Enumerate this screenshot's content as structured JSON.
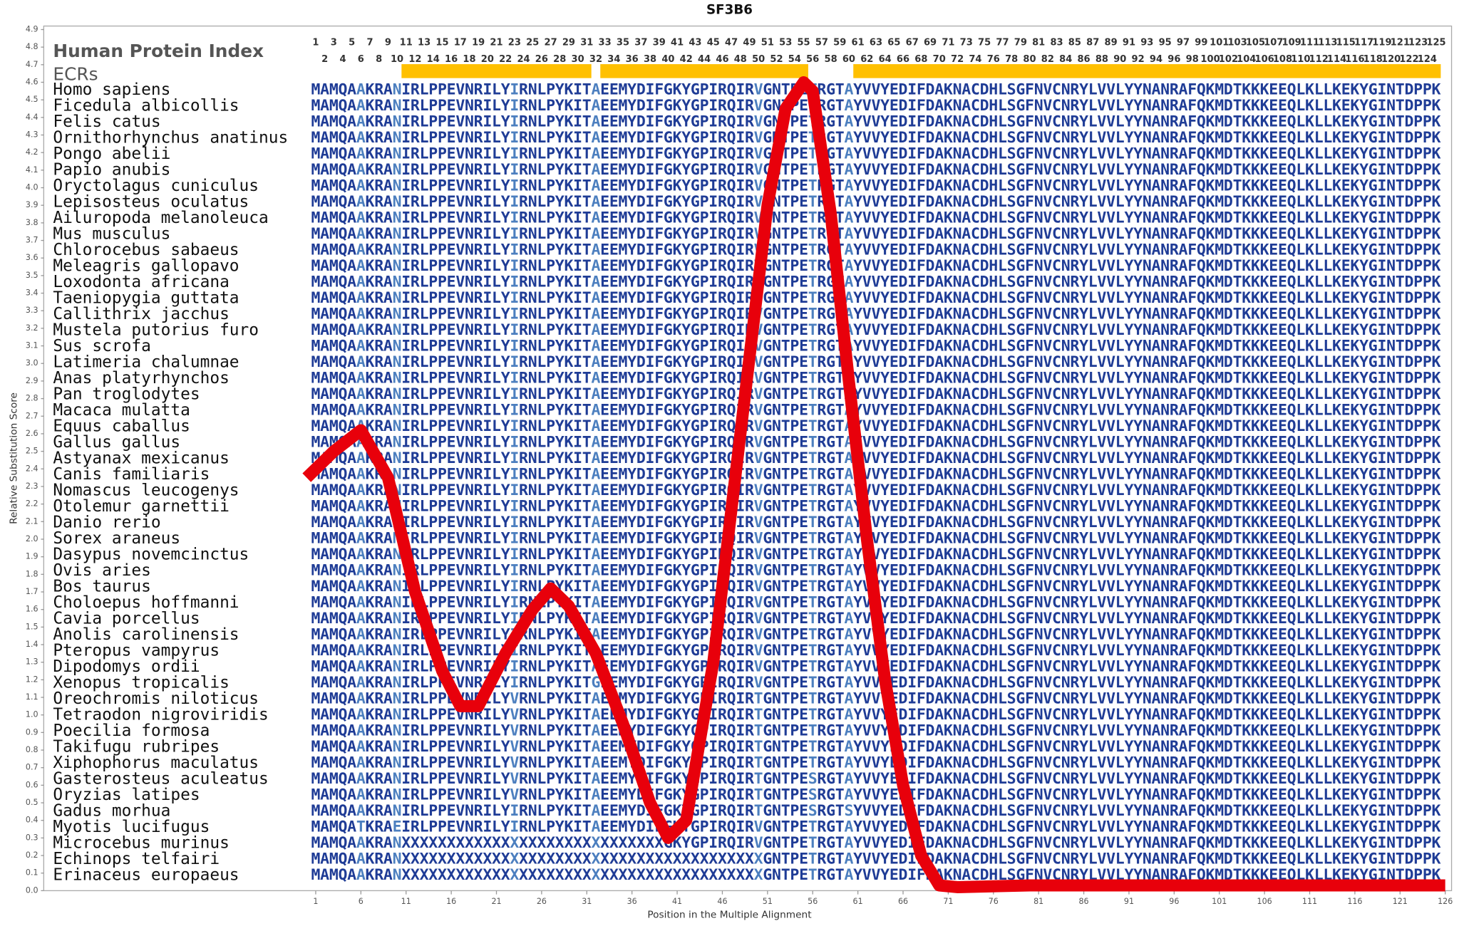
{
  "chart_data": {
    "type": "line",
    "title": "SF3B6",
    "x_label": "Position in the Multiple Alignment",
    "y_label": "Relative Substitution Score",
    "index_label": "Human Protein Index",
    "ecr_label": "ECRs",
    "color": "#e8000b",
    "ecr_color": "#ffc000",
    "conserved_color": "#1f3c96",
    "variable_color": "#4c7fbf",
    "xlim": [
      -29.1,
      126.7
    ],
    "ylim": [
      0,
      4.92
    ],
    "xticks": [
      1,
      6,
      11,
      16,
      21,
      26,
      31,
      36,
      41,
      46,
      51,
      56,
      61,
      66,
      71,
      76,
      81,
      86,
      91,
      96,
      101,
      106,
      111,
      116,
      121,
      126
    ],
    "yticks": [
      {
        "value": 0,
        "label": "0.0"
      },
      0.1,
      0.2,
      0.3,
      0.4,
      0.5,
      0.6,
      0.7,
      0.8,
      0.9,
      {
        "value": 1,
        "label": "1.0"
      },
      1.1,
      1.2,
      1.3,
      1.4,
      1.5,
      1.6,
      1.7,
      1.8,
      1.9,
      {
        "value": 2,
        "label": "2.0"
      },
      2.1,
      2.2,
      2.3,
      2.4,
      2.5,
      2.6,
      2.7,
      2.8,
      2.9,
      {
        "value": 3,
        "label": "3.0"
      },
      3.1,
      3.2,
      3.3,
      3.4,
      3.5,
      3.6,
      3.7,
      3.8,
      3.9,
      {
        "value": 4,
        "label": "4.0"
      },
      4.1,
      4.2,
      4.3,
      4.4,
      4.5,
      4.6,
      4.7,
      4.8,
      4.9
    ],
    "x": [
      0,
      3,
      6,
      9,
      12,
      15,
      17,
      19,
      22,
      25,
      27,
      29,
      32,
      35,
      38,
      40,
      42,
      45,
      48,
      51,
      53,
      55,
      56,
      58,
      60,
      62,
      64,
      66,
      68,
      70,
      72,
      80,
      90,
      100,
      110,
      126
    ],
    "values": [
      2.35,
      2.5,
      2.62,
      2.35,
      1.7,
      1.25,
      1.05,
      1.05,
      1.35,
      1.6,
      1.72,
      1.62,
      1.35,
      0.95,
      0.5,
      0.3,
      0.4,
      1.3,
      2.6,
      3.9,
      4.45,
      4.6,
      4.55,
      3.85,
      2.9,
      2.0,
      1.2,
      0.6,
      0.2,
      0.03,
      0.02,
      0.03,
      0.03,
      0.03,
      0.03,
      0.03
    ],
    "column_numbers": [
      1,
      2,
      3,
      4,
      5,
      6,
      7,
      8,
      9,
      10,
      11,
      12,
      13,
      14,
      15,
      16,
      17,
      18,
      19,
      20,
      21,
      22,
      23,
      24,
      25,
      26,
      27,
      28,
      29,
      30,
      31,
      32,
      33,
      34,
      35,
      36,
      37,
      38,
      39,
      40,
      41,
      42,
      43,
      44,
      45,
      46,
      47,
      48,
      49,
      50,
      51,
      52,
      53,
      54,
      55,
      56,
      57,
      58,
      59,
      60,
      61,
      62,
      63,
      64,
      65,
      66,
      67,
      68,
      69,
      70,
      71,
      72,
      73,
      74,
      75,
      76,
      77,
      78,
      79,
      80,
      81,
      82,
      83,
      84,
      85,
      86,
      87,
      88,
      89,
      90,
      91,
      92,
      93,
      94,
      95,
      96,
      97,
      98,
      99,
      100,
      101,
      102,
      103,
      104,
      105,
      106,
      107,
      108,
      109,
      110,
      111,
      112,
      113,
      114,
      115,
      116,
      117,
      118,
      119,
      120,
      121,
      122,
      123,
      124,
      125
    ],
    "ecrs": [
      [
        11,
        31
      ],
      [
        33,
        55
      ],
      [
        61,
        125
      ]
    ],
    "rows": [
      {
        "species": "Homo sapiens",
        "sequence": "MAMQAAKRANIRLPPEVNRILYIRNLPYKITAEEMYDIFGKYGPIRQIRVGNTPETRGTAYVVYEDIFDAKNACDHLSGFNVCNRYLVVLYYNANRAFQKMDTKKKEEQLKLLKEKYGINTDPPK"
      },
      {
        "species": "Ficedula albicollis",
        "sequence": "MAMQAAKRANIRLPPEVNRILYIRNLPYKITAEEMYDIFGKYGPIRQIRVGNTPETRGTAYVVYEDIFDAKNACDHLSGFNVCNRYLVVLYYNANRAFQKMDTKKKEEQLKLLKEKYGINTDPPK"
      },
      {
        "species": "Felis catus",
        "sequence": "MAMQAAKRANIRLPPEVNRILYIRNLPYKITAEEMYDIFGKYGPIRQIRVGNTPETRGTAYVVYEDIFDAKNACDHLSGFNVCNRYLVVLYYNANRAFQKMDTKKKEEQLKLLKEKYGINTDPPK"
      },
      {
        "species": "Ornithorhynchus anatinus",
        "sequence": "MAMQAAKRANIRLPPEVNRILYIRNLPYKITAEEMYDIFGKYGPIRQIRVGNTPETRGTAYVVYEDIFDAKNACDHLSGFNVCNRYLVVLYYNANRAFQKMDTKKKEEQLKLLKEKYGINTDPPK"
      },
      {
        "species": "Pongo abelii",
        "sequence": "MAMQAAKRANIRLPPEVNRILYIRNLPYKITAEEMYDIFGKYGPIRQIRVGNTPETRGTAYVVYEDIFDAKNACDHLSGFNVCNRYLVVLYYNANRAFQKMDTKKKEEQLKLLKEKYGINTDPPK"
      },
      {
        "species": "Papio anubis",
        "sequence": "MAMQAAKRANIRLPPEVNRILYIRNLPYKITAEEMYDIFGKYGPIRQIRVGNTPETRGTAYVVYEDIFDAKNACDHLSGFNVCNRYLVVLYYNANRAFQKMDTKKKEEQLKLLKEKYGINTDPPK"
      },
      {
        "species": "Oryctolagus cuniculus",
        "sequence": "MAMQAAKRANIRLPPEVNRILYIRNLPYKITAEEMYDIFGKYGPIRQIRVGNTPETRGTAYVVYEDIFDAKNACDHLSGFNVCNRYLVVLYYNANRAFQKMDTKKKEEQLKLLKEKYGINTDPPK"
      },
      {
        "species": "Lepisosteus oculatus",
        "sequence": "MAMQAAKRANIRLPPEVNRILYIRNLPYKITAEEMYDIFGKYGPIRQIRVGNTPETRGTAYVVYEDIFDAKNACDHLSGFNVCNRYLVVLYYNANRAFQKMDTKKKEEQLKLLKEKYGINTDPPK"
      },
      {
        "species": "Ailuropoda melanoleuca",
        "sequence": "MAMQAAKRANIRLPPEVNRILYIRNLPYKITAEEMYDIFGKYGPIRQIRVGNTPETRGTAYVVYEDIFDAKNACDHLSGFNVCNRYLVVLYYNANRAFQKMDTKKKEEQLKLLKEKYGINTDPPK"
      },
      {
        "species": "Mus musculus",
        "sequence": "MAMQAAKRANIRLPPEVNRILYIRNLPYKITAEEMYDIFGKYGPIRQIRVGNTPETRGTAYVVYEDIFDAKNACDHLSGFNVCNRYLVVLYYNANRAFQKMDTKKKEEQLKLLKEKYGINTDPPK"
      },
      {
        "species": "Chlorocebus sabaeus",
        "sequence": "MAMQAAKRANIRLPPEVNRILYIRNLPYKITAEEMYDIFGKYGPIRQIRVGNTPETRGTAYVVYEDIFDAKNACDHLSGFNVCNRYLVVLYYNANRAFQKMDTKKKEEQLKLLKEKYGINTDPPK"
      },
      {
        "species": "Meleagris gallopavo",
        "sequence": "MAMQAAKRANIRLPPEVNRILYIRNLPYKITAEEMYDIFGKYGPIRQIRVGNTPETRGTAYVVYEDIFDAKNACDHLSGFNVCNRYLVVLYYNANRAFQKMDTKKKEEQLKLLKEKYGINTDPPK"
      },
      {
        "species": "Loxodonta africana",
        "sequence": "MAMQAAKRANIRLPPEVNRILYIRNLPYKITAEEMYDIFGKYGPIRQIRVGNTPETRGTAYVVYEDIFDAKNACDHLSGFNVCNRYLVVLYYNANRAFQKMDTKKKEEQLKLLKEKYGINTDPPK"
      },
      {
        "species": "Taeniopygia guttata",
        "sequence": "MAMQAAKRANIRLPPEVNRILYIRNLPYKITAEEMYDIFGKYGPIRQIRVGNTPETRGTAYVVYEDIFDAKNACDHLSGFNVCNRYLVVLYYNANRAFQKMDTKKKEEQLKLLKEKYGINTDPPK"
      },
      {
        "species": "Callithrix jacchus",
        "sequence": "MAMQAAKRANIRLPPEVNRILYIRNLPYKITAEEMYDIFGKYGPIRQIRVGNTPETRGTAYVVYEDIFDAKNACDHLSGFNVCNRYLVVLYYNANRAFQKMDTKKKEEQLKLLKEKYGINTDPPK"
      },
      {
        "species": "Mustela putorius furo",
        "sequence": "MAMQAAKRANIRLPPEVNRILYIRNLPYKITAEEMYDIFGKYGPIRQIRVGNTPETRGTAYVVYEDIFDAKNACDHLSGFNVCNRYLVVLYYNANRAFQKMDTKKKEEQLKLLKEKYGINTDPPK"
      },
      {
        "species": "Sus scrofa",
        "sequence": "MAMQAAKRANIRLPPEVNRILYIRNLPYKITAEEMYDIFGKYGPIRQIRVGNTPETRGTAYVVYEDIFDAKNACDHLSGFNVCNRYLVVLYYNANRAFQKMDTKKKEEQLKLLKEKYGINTDPPK"
      },
      {
        "species": "Latimeria chalumnae",
        "sequence": "MAMQAAKRANIRLPPEVNRILYIRNLPYKITAEEMYDIFGKYGPIRQIRVGNTPETRGTAYVVYEDIFDAKNACDHLSGFNVCNRYLVVLYYNANRAFQKMDTKKKEEQLKLLKEKYGINTDPPK"
      },
      {
        "species": "Anas platyrhynchos",
        "sequence": "MAMQAAKRANIRLPPEVNRILYIRNLPYKITAEEMYDIFGKYGPIRQIRVGNTPETRGTAYVVYEDIFDAKNACDHLSGFNVCNRYLVVLYYNANRAFQKMDTKKKEEQLKLLKEKYGINTDPPK"
      },
      {
        "species": "Pan troglodytes",
        "sequence": "MAMQAAKRANIRLPPEVNRILYIRNLPYKITAEEMYDIFGKYGPIRQIRVGNTPETRGTAYVVYEDIFDAKNACDHLSGFNVCNRYLVVLYYNANRAFQKMDTKKKEEQLKLLKEKYGINTDPPK"
      },
      {
        "species": "Macaca mulatta",
        "sequence": "MAMQAAKRANIRLPPEVNRILYIRNLPYKITAEEMYDIFGKYGPIRQIRVGNTPETRGTAYVVYEDIFDAKNACDHLSGFNVCNRYLVVLYYNANRAFQKMDTKKKEEQLKLLKEKYGINTDPPK"
      },
      {
        "species": "Equus caballus",
        "sequence": "MAMQAAKRANIRLPPEVNRILYIRNLPYKITAEEMYDIFGKYGPIRQIRVGNTPETRGTAYVVYEDIFDAKNACDHLSGFNVCNRYLVVLYYNANRAFQKMDTKKKEEQLKLLKEKYGINTDPPK"
      },
      {
        "species": "Gallus gallus",
        "sequence": "MAMQAAKRANIRLPPEVNRILYIRNLPYKITAEEMYDIFGKYGPIRQIRVGNTPETRGTAYVVYEDIFDAKNACDHLSGFNVCNRYLVVLYYNANRAFQKMDTKKKEEQLKLLKEKYGINTDPPK"
      },
      {
        "species": "Astyanax mexicanus",
        "sequence": "MAMQAAKRANIRLPPEVNRILYIRNLPYKITAEEMYDIFGKYGPIRQIRVGNTPETRGTAYVVYEDIFDAKNACDHLSGFNVCNRYLVVLYYNANRAFQKMDTKKKEEQLKLLKEKYGINTDPPK"
      },
      {
        "species": "Canis familiaris",
        "sequence": "MAMQAAKRANIRLPPEVNRILYIRNLPYKITAEEMYDIFGKYGPIRQIRVGNTPETRGTAYVVYEDIFDAKNACDHLSGFNVCNRYLVVLYYNANRAFQKMDTKKKEEQLKLLKEKYGINTDPPK"
      },
      {
        "species": "Nomascus leucogenys",
        "sequence": "MAMQAAKRANIRLPPEVNRILYIRNLPYKITAEEMYDIFGKYGPIRQIRVGNTPETRGTAYVVYEDIFDAKNACDHLSGFNVCNRYLVVLYYNANRAFQKMDTKKKEEQLKLLKEKYGINTDPPK"
      },
      {
        "species": "Otolemur garnettii",
        "sequence": "MAMQAAKRANIRLPPEVNRILYIRNLPYKITAEEMYDIFGKYGPIRQIRVGNTPETRGTAYVVYEDIFDAKNACDHLSGFNVCNRYLVVLYYNANRAFQKMDTKKKEEQLKLLKEKYGINTDPPK"
      },
      {
        "species": "Danio rerio",
        "sequence": "MAMQAAKRANIRLPPEVNRILYIRNLPYKITAEEMYDIFGKYGPIRQIRVGNTPETRGTAYVVYEDIFDAKNACDHLSGFNVCNRYLVVLYYNANRAFQKMDTKKKEEQLKLLKEKYGINTDPPK"
      },
      {
        "species": "Sorex araneus",
        "sequence": "MAMQAAKRANIRLPPEVNRILYIRNLPYKITAEEMYDIFGKYGPIRQIRVGNTPETRGTAYVVYEDIFDAKNACDHLSGFNVCNRYLVVLYYNANRAFQKMDTKKKEEQLKLLKEKYGINTDPPK"
      },
      {
        "species": "Dasypus novemcinctus",
        "sequence": "MAMQAAKRANIRLPPEVNRILYIRNLPYKITAEEMYDIFGKYGPIRQIRVGNTPETRGTAYVVYEDIFDAKNACDHLSGFNVCNRYLVVLYYNANRAFQKMDTKKKEEQLKLLKEKYGINTDPPK"
      },
      {
        "species": "Ovis aries",
        "sequence": "MAMQAAKRANIRLPPEVNRILYIRNLPYKITAEEMYDIFGKYGPIRQIRVGNTPETRGTAYVVYEDIFDAKNACDHLSGFNVCNRYLVVLYYNANRAFQKMDTKKKEEQLKLLKEKYGINTDPPK"
      },
      {
        "species": "Bos taurus",
        "sequence": "MAMQAAKRANIRLPPEVNRILYIRNLPYKITAEEMYDIFGKYGPIRQIRVGNTPETRGTAYVVYEDIFDAKNACDHLSGFNVCNRYLVVLYYNANRAFQKMDTKKKEEQLKLLKEKYGINTDPPK"
      },
      {
        "species": "Choloepus hoffmanni",
        "sequence": "MAMQAAKRANIRLPPEVNRILYIRNLPYKITAEEMYDIFGKYGPIRQIRVGNTPETRGTAYVVYEDIFDAKNACDHLSGFNVCNRYLVVLYYNANRAFQKMDTKKKEEQLKLLKEKYGINTDPPK"
      },
      {
        "species": "Cavia porcellus",
        "sequence": "MAMQAAKRANIRLPPEVNRILYIRNLPYKITAEEMYDIFGKYGPIRQIRVGNTPETRGTAYVVYEDIFDAKNACDHLSGFNVCNRYLVVLYYNANRAFQKMDTKKKEEQLKLLKEKYGINTDPPK"
      },
      {
        "species": "Anolis carolinensis",
        "sequence": "MAMQAAKRANIRLPPEVNRILYIRNLPYKITAEEMYDIFGKYGPIRQIRVGNTPETRGTAYVVYEDIFDAKNACDHLSGFNVCNRYLVVLYYNANRAFQKMDTKKKEEQLKLLKEKYGINTDPPK"
      },
      {
        "species": "Pteropus vampyrus",
        "sequence": "MAMQAAKRANIRLPPEVNRILYIRNLPYKITAEEMYDIFGKYGPIRQIRVGNTPETRGTAYVVYEDIFDAKNACDHLSGFNVCNRYLVVLYYNANRAFQKMDTKKKEEQLKLLKEKYGINTDPPK"
      },
      {
        "species": "Dipodomys ordii",
        "sequence": "MAMQAAKRANIRLPPEVNRILYIRNLPYKITAEEMYDIFGKYGPIRQIRVGNTPETRGTAYVVYEDIFDAKNACDHLSGFNVCNRYLVVLYYNANRAFQKMDTKKKEEQLKLLKEKYGINTDPPK"
      },
      {
        "species": "Xenopus tropicalis",
        "sequence": "MAMQAAKRANIRLPPEVNRILYIRNLPYKITGEEMYDIFGKYGPIRQIRVGNTPETRGTAYVVYEDIFDAKNACDHLSGFNVCNRYLVVLYYNANRAFQKMDTKKKEEQLKLLKEKYGINTDPPK"
      },
      {
        "species": "Oreochromis niloticus",
        "sequence": "MAMQAAKRANIRLPPEVNRILYVRNLPYKITAEEMYDIFGKYGPIRQIRTGNTPETRGTAYVVYEDIFDAKNACDHLSGFNVCNRYLVVLYYNANRAFQKMDTKKKEEQLKLLKEKYGINTDPPK"
      },
      {
        "species": "Tetraodon nigroviridis",
        "sequence": "MAMQAAKRANIRLPPEVNRILYVRNLPYKITAEEMYDIFGKYGPIRQIRTGNTPETRGTAYVVYEDIFDAKNACDHLSGFNVCNRYLVVLYYNANRAFQKMDTKKKEEQLKLLKEKYGINTDPPK"
      },
      {
        "species": "Poecilia formosa",
        "sequence": "MAMQAAKRANIRLPPEVNRILYVRNLPYKITAEEMYDIFGKYGPIRQIRTGNTPETRGTAYVVYEDIFDAKNACDHLSGFNVCNRYLVVLYYNANRAFQKMDTKKKEEQLKLLKEKYGINTDPPK"
      },
      {
        "species": "Takifugu rubripes",
        "sequence": "MAMQAAKRANIRLPPEVNRILYVRNLPYKITAEEMYDIFGKYGPIRQIRTGNTPETRGTAYVVYEDIFDAKNACDHLSGFNVCNRYLVVLYYNANRAFQKMDTKKKEEQLKLLKEKYGINTDPPK"
      },
      {
        "species": "Xiphophorus maculatus",
        "sequence": "MAMQAAKRANIRLPPEVNRILYVRNLPYKITAEEMYDIFGKYGPIRQIRTGNTPETRGTAYVVYEDIFDAKNACDHLSGFNVCNRYLVVLYYNANRAFQKMDTKKKEEQLKLLKEKYGINTDPPK"
      },
      {
        "species": "Gasterosteus aculeatus",
        "sequence": "MAMQAAKRANIRLPPEVNRILYVRNLPYKITAEEMYDIFGKYGPIRQIRTGNTPESRGTAYVVYEDIFDAKNACDHLSGFNVCNRYLVVLYYNANRAFQKMDTKKKEEQLKLLKEKYGINTDPPK"
      },
      {
        "species": "Oryzias latipes",
        "sequence": "MAMQAAKRANIRLPPEVNRILYVRNLPYKITAEEMYDIFGKYGPIRQIRTGNTPESRGTAYVVYEDIFDAKNACDHLSGFNVCNRYLVVLYYNANRAFQKMDTKKKEEQLKLLKEKYGINTDPPK"
      },
      {
        "species": "Gadus morhua",
        "sequence": "MAMQAAKRANIRLPPEVNRILYIRNLPYKITAEEMYDIFGKYGPIRQIRTGNTPESRGTSYVVYEDIFDAKNACDHLSGFNVCNRYLVVLYYNANRAFQKMDTKKKEEQLKLLKEKYGINTDPPK"
      },
      {
        "species": "Myotis lucifugus",
        "sequence": "MAMQATKRAEIRLPPEVNRILYIRNLPYKITAEEMYDIFGKYGPIRQIRVGNTPETRGTAYVVYEDIFDAKNACDHLSGFNVCNRYLVVLYYNANRAFQKMDTKKKEEQLKLLKEKYGINTDPPK"
      },
      {
        "species": "Microcebus murinus",
        "sequence": "MAMQAAKRANXXXXXXXXXXXXXXXXXXXXXXXXXXXXXGKYGPIRQIRVGNTPETRGTAYVVYEDIFDAKNACDHLSGFNVCNRYLVVLYYNANRAFQKMDTKKKEEQLKLLKEKYGINTDPPK"
      },
      {
        "species": "Echinops telfairi",
        "sequence": "MAMQAAKRANXXXXXXXXXXXXXXXXXXXXXXXXXXXXXXXXXXXXXXXXGNTPETRGTAYVVYEDIFDAKNACDHLSGFNVCNRYLVVLYYNANRAFQKMDTKKKEEQLKLLKEKYGINTDPPK"
      },
      {
        "species": "Erinaceus europaeus",
        "sequence": "MAMQAAKRANXXXXXXXXXXXXXXXXXXXXXXXXXXXXXXXXXXXXXXXXGNTPETRGTAYVVYEDIFDAKNACDHLSGFNVCNRYLVVLYYNANRAFQKMDTKKKEEQLKLLKEKYGINTDPPK"
      }
    ]
  }
}
